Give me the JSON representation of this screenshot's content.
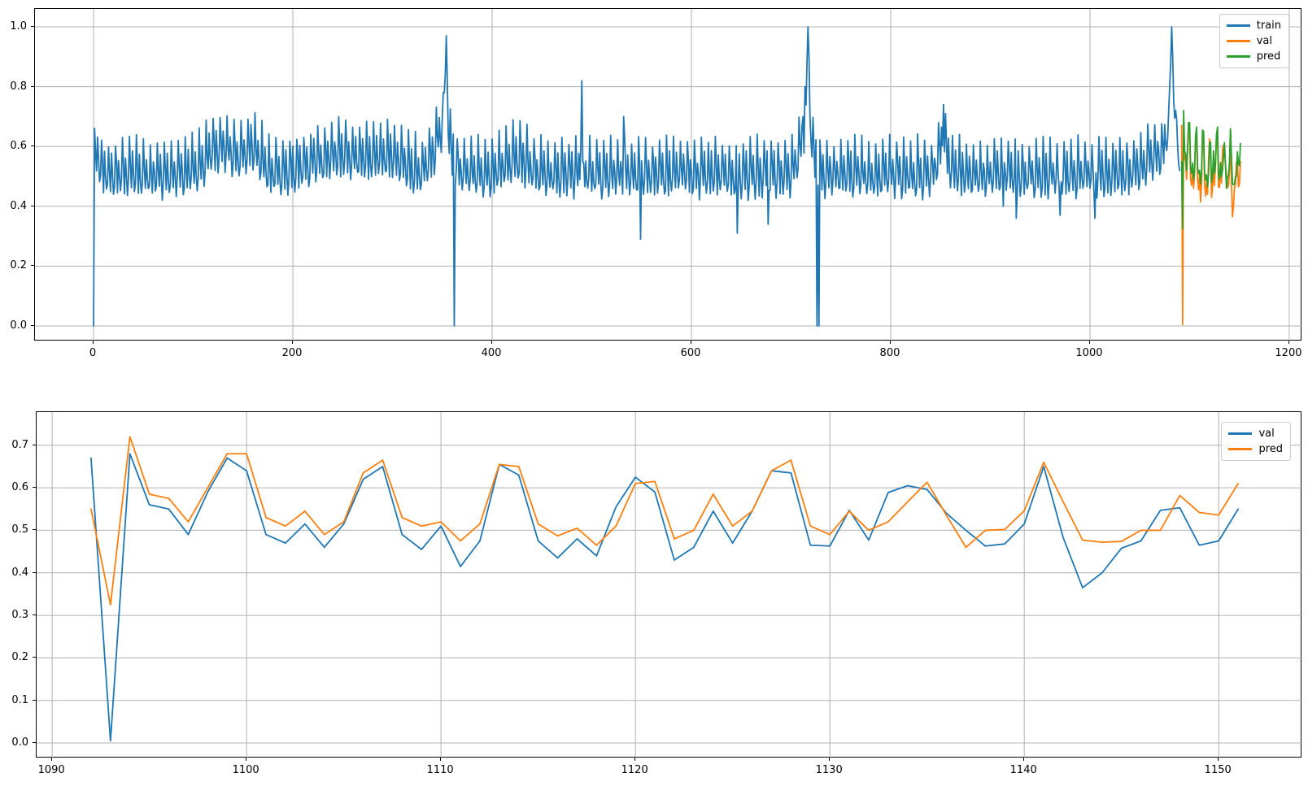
{
  "figure": {
    "background": "#ffffff",
    "kind": "matplotlib line figure, two stacked subplots, no titles or axis labels"
  },
  "chart_data": [
    {
      "type": "line",
      "title": "",
      "xlabel": "",
      "ylabel": "",
      "xlim": [
        -58.8,
        1213.1
      ],
      "ylim": [
        -0.0516,
        1.0598
      ],
      "xticks": [
        0,
        200,
        400,
        600,
        800,
        1000,
        1200
      ],
      "xtick_labels": [
        "0",
        "200",
        "400",
        "600",
        "800",
        "1000",
        "1200"
      ],
      "yticks": [
        0.0,
        0.2,
        0.4,
        0.6,
        0.8,
        1.0
      ],
      "ytick_labels": [
        "0.0",
        "0.2",
        "0.4",
        "0.6",
        "0.8",
        "1.0"
      ],
      "grid": true,
      "grid_color": "#b0b0b0",
      "legend": {
        "location": "upper right",
        "entries": [
          "train",
          "val",
          "pred"
        ]
      },
      "series": [
        {
          "name": "train",
          "color": "#1f77b4",
          "kind": "generated",
          "generator": {
            "description": "noisy series with weekly seasonality oscillating ~0.44-0.66, occasional tall spikes and drops to zero",
            "x_start": 0,
            "x_end": 1090,
            "weekly_template": [
              0.475,
              0.62,
              0.53,
              0.455,
              0.565,
              0.5,
              0.44
            ],
            "noise_amp": 0.022,
            "seed": 7,
            "bumps": [
              {
                "c": 3,
                "w": 3,
                "a": 0.07
              },
              {
                "c": 130,
                "w": 16,
                "a": 0.085
              },
              {
                "c": 160,
                "w": 8,
                "a": 0.075
              },
              {
                "c": 250,
                "w": 30,
                "a": 0.065
              },
              {
                "c": 300,
                "w": 15,
                "a": 0.04
              },
              {
                "c": 350,
                "w": 8,
                "a": 0.14
              },
              {
                "c": 425,
                "w": 12,
                "a": 0.05
              },
              {
                "c": 715,
                "w": 7,
                "a": 0.13
              },
              {
                "c": 853,
                "w": 5,
                "a": 0.09
              },
              {
                "c": 1073,
                "w": 15,
                "a": 0.07
              },
              {
                "c": 1083,
                "w": 4,
                "a": 0.2
              }
            ],
            "anomalies": [
              [
                0,
                0.0
              ],
              [
                348,
                0.62
              ],
              [
                350,
                0.7
              ],
              [
                352,
                0.78
              ],
              [
                353,
                0.84
              ],
              [
                354,
                0.97
              ],
              [
                355,
                0.82
              ],
              [
                356,
                0.64
              ],
              [
                362,
                0.0
              ],
              [
                489,
                0.6
              ],
              [
                490,
                0.82
              ],
              [
                491,
                0.55
              ],
              [
                532,
                0.7
              ],
              [
                549,
                0.29
              ],
              [
                646,
                0.31
              ],
              [
                677,
                0.34
              ],
              [
                712,
                0.7
              ],
              [
                714,
                0.8
              ],
              [
                716,
                0.88
              ],
              [
                717,
                1.0
              ],
              [
                718,
                0.9
              ],
              [
                719,
                0.7
              ],
              [
                720,
                0.62
              ],
              [
                726,
                0.0
              ],
              [
                727,
                0.47
              ],
              [
                728,
                0.0
              ],
              [
                853,
                0.74
              ],
              [
                913,
                0.4
              ],
              [
                926,
                0.36
              ],
              [
                970,
                0.37
              ],
              [
                1005,
                0.36
              ],
              [
                1079,
                0.72
              ],
              [
                1080,
                0.8
              ],
              [
                1081,
                0.88
              ],
              [
                1082,
                1.0
              ],
              [
                1083,
                0.9
              ],
              [
                1084,
                0.76
              ],
              [
                1086,
                0.72
              ],
              [
                1088,
                0.6
              ],
              [
                1089,
                0.54
              ],
              [
                1090,
                0.52
              ]
            ]
          }
        },
        {
          "name": "val",
          "color": "#ff7f0e",
          "x_start": 1092,
          "x_step": 1,
          "values": [
            0.67,
            0.005,
            0.68,
            0.56,
            0.55,
            0.49,
            0.59,
            0.67,
            0.64,
            0.49,
            0.47,
            0.515,
            0.46,
            0.515,
            0.62,
            0.65,
            0.49,
            0.455,
            0.51,
            0.415,
            0.475,
            0.655,
            0.63,
            0.475,
            0.435,
            0.48,
            0.44,
            0.555,
            0.625,
            0.59,
            0.43,
            0.46,
            0.545,
            0.47,
            0.545,
            0.64,
            0.635,
            0.465,
            0.463,
            0.547,
            0.477,
            0.589,
            0.605,
            0.596,
            0.54,
            0.5,
            0.463,
            0.468,
            0.515,
            0.65,
            0.483,
            0.365,
            0.4,
            0.458,
            0.475,
            0.547,
            0.553,
            0.465,
            0.475,
            0.55
          ]
        },
        {
          "name": "pred",
          "color": "#2ca02c",
          "x_start": 1092,
          "x_step": 1,
          "values": [
            0.55,
            0.325,
            0.72,
            0.585,
            0.575,
            0.52,
            0.6,
            0.68,
            0.68,
            0.53,
            0.51,
            0.545,
            0.49,
            0.52,
            0.635,
            0.665,
            0.53,
            0.51,
            0.52,
            0.475,
            0.515,
            0.655,
            0.65,
            0.515,
            0.487,
            0.505,
            0.465,
            0.51,
            0.61,
            0.615,
            0.48,
            0.5,
            0.585,
            0.51,
            0.545,
            0.64,
            0.665,
            0.51,
            0.49,
            0.545,
            0.5,
            0.52,
            0.567,
            0.613,
            0.535,
            0.46,
            0.5,
            0.502,
            0.546,
            0.66,
            0.567,
            0.477,
            0.472,
            0.474,
            0.5,
            0.5,
            0.582,
            0.542,
            0.536,
            0.61
          ]
        }
      ]
    },
    {
      "type": "line",
      "title": "",
      "xlabel": "",
      "ylabel": "",
      "xlim": [
        1089.2,
        1154.3
      ],
      "ylim": [
        -0.0363,
        0.778
      ],
      "xticks": [
        1090,
        1100,
        1110,
        1120,
        1130,
        1140,
        1150
      ],
      "xtick_labels": [
        "1090",
        "1100",
        "1110",
        "1120",
        "1130",
        "1140",
        "1150"
      ],
      "yticks": [
        0.0,
        0.1,
        0.2,
        0.3,
        0.4,
        0.5,
        0.6,
        0.7
      ],
      "ytick_labels": [
        "0.0",
        "0.1",
        "0.2",
        "0.3",
        "0.4",
        "0.5",
        "0.6",
        "0.7"
      ],
      "grid": true,
      "grid_color": "#b0b0b0",
      "legend": {
        "location": "upper right",
        "entries": [
          "val",
          "pred"
        ]
      },
      "series": [
        {
          "name": "val",
          "color": "#1f77b4",
          "x_start": 1092,
          "x_step": 1,
          "values": [
            0.67,
            0.005,
            0.68,
            0.56,
            0.55,
            0.49,
            0.59,
            0.67,
            0.64,
            0.49,
            0.47,
            0.515,
            0.46,
            0.515,
            0.62,
            0.65,
            0.49,
            0.455,
            0.51,
            0.415,
            0.475,
            0.655,
            0.63,
            0.475,
            0.435,
            0.48,
            0.44,
            0.555,
            0.625,
            0.59,
            0.43,
            0.46,
            0.545,
            0.47,
            0.545,
            0.64,
            0.635,
            0.465,
            0.463,
            0.547,
            0.477,
            0.589,
            0.605,
            0.596,
            0.54,
            0.5,
            0.463,
            0.468,
            0.515,
            0.65,
            0.483,
            0.365,
            0.4,
            0.458,
            0.475,
            0.547,
            0.553,
            0.465,
            0.475,
            0.55
          ]
        },
        {
          "name": "pred",
          "color": "#ff7f0e",
          "x_start": 1092,
          "x_step": 1,
          "values": [
            0.55,
            0.325,
            0.72,
            0.585,
            0.575,
            0.52,
            0.6,
            0.68,
            0.68,
            0.53,
            0.51,
            0.545,
            0.49,
            0.52,
            0.635,
            0.665,
            0.53,
            0.51,
            0.52,
            0.475,
            0.515,
            0.655,
            0.65,
            0.515,
            0.487,
            0.505,
            0.465,
            0.51,
            0.61,
            0.615,
            0.48,
            0.5,
            0.585,
            0.51,
            0.545,
            0.64,
            0.665,
            0.51,
            0.49,
            0.545,
            0.5,
            0.52,
            0.567,
            0.613,
            0.535,
            0.46,
            0.5,
            0.502,
            0.546,
            0.66,
            0.567,
            0.477,
            0.472,
            0.474,
            0.5,
            0.5,
            0.582,
            0.542,
            0.536,
            0.61
          ]
        }
      ]
    }
  ]
}
